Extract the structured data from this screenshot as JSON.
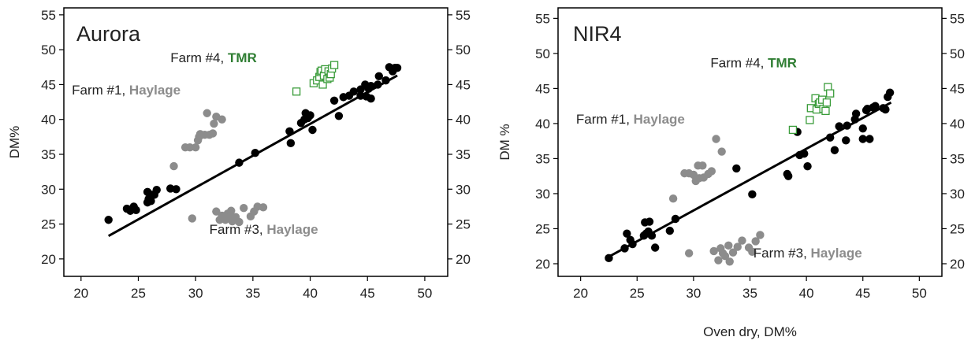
{
  "chart_data": [
    {
      "type": "scatter",
      "title": "Aurora",
      "xlabel": "",
      "ylabel": "DM%",
      "xlim": [
        18.5,
        52
      ],
      "ylim": [
        17.5,
        56
      ],
      "xticks": [
        20,
        25,
        30,
        35,
        40,
        45,
        50
      ],
      "yticks": [
        20,
        25,
        30,
        35,
        40,
        45,
        50,
        55
      ],
      "right_axis_ticks": true,
      "grid": false,
      "colors": {
        "black": "#000000",
        "gray": "#8c8c8c",
        "green": "#3a9c3a",
        "tmr_label": "#2e7d32"
      },
      "annotations": [
        {
          "farm": "Farm #4,",
          "type": "TMR",
          "color": "green",
          "x": 27.8,
          "y": 48.2
        },
        {
          "farm": "Farm #1,",
          "type": "Haylage",
          "color": "gray",
          "x": 19.2,
          "y": 43.6
        },
        {
          "farm": "Farm #3,",
          "type": "Haylage",
          "color": "gray",
          "x": 31.2,
          "y": 23.6
        }
      ],
      "series": [
        {
          "marker": "filled-circle",
          "color": "black",
          "points": [
            [
              22.4,
              25.6
            ],
            [
              24.0,
              27.2
            ],
            [
              24.3,
              26.9
            ],
            [
              24.6,
              27.5
            ],
            [
              24.8,
              27.0
            ],
            [
              25.8,
              28.1
            ],
            [
              25.8,
              29.6
            ],
            [
              25.9,
              28.6
            ],
            [
              26.1,
              28.3
            ],
            [
              26.2,
              29.2
            ],
            [
              26.4,
              29.2
            ],
            [
              26.6,
              29.9
            ],
            [
              27.8,
              30.1
            ],
            [
              28.3,
              30.0
            ],
            [
              33.8,
              33.8
            ],
            [
              35.2,
              35.2
            ],
            [
              38.2,
              38.3
            ],
            [
              38.3,
              36.6
            ],
            [
              39.2,
              39.5
            ],
            [
              39.5,
              40.0
            ],
            [
              39.6,
              40.9
            ],
            [
              39.8,
              40.2
            ],
            [
              40.0,
              40.6
            ],
            [
              40.2,
              38.5
            ],
            [
              42.1,
              42.7
            ],
            [
              42.5,
              40.5
            ],
            [
              42.9,
              43.2
            ],
            [
              43.4,
              43.4
            ],
            [
              43.8,
              44.0
            ],
            [
              44.4,
              43.4
            ],
            [
              44.4,
              44.3
            ],
            [
              44.8,
              45.0
            ],
            [
              44.9,
              43.3
            ],
            [
              45.1,
              44.4
            ],
            [
              45.3,
              43.0
            ],
            [
              45.3,
              44.8
            ],
            [
              45.9,
              45.0
            ],
            [
              46.0,
              46.2
            ],
            [
              46.6,
              45.6
            ],
            [
              46.9,
              47.5
            ],
            [
              47.2,
              46.9
            ],
            [
              47.4,
              47.4
            ],
            [
              47.6,
              47.4
            ]
          ]
        },
        {
          "marker": "filled-circle",
          "color": "gray",
          "points": [
            [
              28.1,
              33.3
            ],
            [
              29.1,
              36.0
            ],
            [
              29.5,
              36.0
            ],
            [
              30.0,
              36.0
            ],
            [
              30.2,
              37.0
            ],
            [
              30.3,
              37.5
            ],
            [
              30.4,
              37.9
            ],
            [
              30.8,
              37.8
            ],
            [
              31.0,
              40.9
            ],
            [
              31.2,
              37.8
            ],
            [
              31.5,
              38.0
            ],
            [
              31.6,
              39.4
            ],
            [
              31.8,
              40.4
            ],
            [
              32.3,
              40.0
            ],
            [
              29.7,
              25.8
            ],
            [
              31.8,
              26.8
            ],
            [
              32.1,
              25.6
            ],
            [
              32.3,
              26.2
            ],
            [
              32.6,
              25.6
            ],
            [
              32.8,
              26.5
            ],
            [
              33.0,
              26.0
            ],
            [
              33.1,
              26.9
            ],
            [
              33.2,
              25.4
            ],
            [
              33.5,
              26.0
            ],
            [
              33.8,
              25.3
            ],
            [
              34.2,
              27.3
            ],
            [
              34.8,
              26.1
            ],
            [
              35.1,
              26.8
            ],
            [
              35.4,
              27.5
            ],
            [
              35.9,
              27.4
            ]
          ]
        },
        {
          "marker": "open-square",
          "color": "green",
          "points": [
            [
              38.8,
              44.0
            ],
            [
              40.3,
              45.2
            ],
            [
              40.6,
              45.6
            ],
            [
              40.8,
              46.1
            ],
            [
              40.9,
              46.8
            ],
            [
              41.0,
              47.0
            ],
            [
              41.1,
              45.0
            ],
            [
              41.2,
              46.3
            ],
            [
              41.3,
              47.2
            ],
            [
              41.5,
              45.8
            ],
            [
              41.6,
              46.9
            ],
            [
              41.7,
              46.0
            ],
            [
              41.8,
              46.5
            ],
            [
              41.9,
              47.3
            ],
            [
              42.1,
              47.8
            ]
          ]
        }
      ],
      "fit_line": {
        "x": [
          22.4,
          47.6
        ],
        "y": [
          23.3,
          46.3
        ]
      }
    },
    {
      "type": "scatter",
      "title": "NIR4",
      "xlabel": "Oven dry, DM%",
      "ylabel": "DM %",
      "xlim": [
        18.0,
        52
      ],
      "ylim": [
        18.2,
        56.5
      ],
      "xticks": [
        20,
        25,
        30,
        35,
        40,
        45,
        50
      ],
      "yticks": [
        20,
        25,
        30,
        35,
        40,
        45,
        50,
        55
      ],
      "right_axis_ticks": true,
      "grid": false,
      "colors": {
        "black": "#000000",
        "gray": "#8c8c8c",
        "green": "#3a9c3a",
        "tmr_label": "#2e7d32"
      },
      "annotations": [
        {
          "farm": "Farm #4,",
          "type": "TMR",
          "color": "green",
          "x": 31.5,
          "y": 48.0
        },
        {
          "farm": "Farm #1,",
          "type": "Haylage",
          "color": "gray",
          "x": 19.6,
          "y": 40.0
        },
        {
          "farm": "Farm #3,",
          "type": "Haylage",
          "color": "gray",
          "x": 35.3,
          "y": 20.9
        }
      ],
      "series": [
        {
          "marker": "filled-circle",
          "color": "black",
          "points": [
            [
              22.5,
              20.8
            ],
            [
              23.9,
              22.2
            ],
            [
              24.1,
              24.3
            ],
            [
              24.4,
              23.4
            ],
            [
              24.6,
              22.8
            ],
            [
              25.6,
              24.0
            ],
            [
              25.7,
              25.9
            ],
            [
              25.8,
              24.3
            ],
            [
              26.0,
              24.6
            ],
            [
              26.1,
              26.0
            ],
            [
              26.3,
              24.0
            ],
            [
              26.6,
              22.3
            ],
            [
              27.9,
              24.7
            ],
            [
              28.4,
              26.4
            ],
            [
              33.8,
              33.6
            ],
            [
              35.2,
              29.9
            ],
            [
              38.3,
              32.8
            ],
            [
              38.4,
              32.5
            ],
            [
              39.2,
              38.8
            ],
            [
              39.4,
              35.5
            ],
            [
              39.8,
              35.7
            ],
            [
              40.1,
              33.9
            ],
            [
              42.1,
              38.0
            ],
            [
              42.5,
              36.2
            ],
            [
              42.9,
              39.6
            ],
            [
              43.5,
              37.6
            ],
            [
              43.6,
              39.7
            ],
            [
              44.3,
              40.6
            ],
            [
              44.4,
              41.4
            ],
            [
              45.0,
              39.3
            ],
            [
              45.0,
              37.8
            ],
            [
              45.3,
              41.9
            ],
            [
              45.4,
              42.1
            ],
            [
              45.6,
              37.8
            ],
            [
              45.9,
              42.3
            ],
            [
              46.1,
              42.5
            ],
            [
              46.8,
              42.2
            ],
            [
              47.0,
              42.0
            ],
            [
              47.2,
              43.8
            ],
            [
              47.4,
              44.4
            ]
          ]
        },
        {
          "marker": "filled-circle",
          "color": "gray",
          "points": [
            [
              28.2,
              29.3
            ],
            [
              29.2,
              32.9
            ],
            [
              29.6,
              32.9
            ],
            [
              30.0,
              32.7
            ],
            [
              30.2,
              31.8
            ],
            [
              30.4,
              34.0
            ],
            [
              30.5,
              32.2
            ],
            [
              30.8,
              34.0
            ],
            [
              30.9,
              32.3
            ],
            [
              31.3,
              32.8
            ],
            [
              31.6,
              33.2
            ],
            [
              32.0,
              37.8
            ],
            [
              32.5,
              36.0
            ],
            [
              29.6,
              21.5
            ],
            [
              31.8,
              21.8
            ],
            [
              32.2,
              20.5
            ],
            [
              32.4,
              22.2
            ],
            [
              32.6,
              21.5
            ],
            [
              32.8,
              21.1
            ],
            [
              33.1,
              22.6
            ],
            [
              33.2,
              20.3
            ],
            [
              33.5,
              21.6
            ],
            [
              33.9,
              22.4
            ],
            [
              34.3,
              23.3
            ],
            [
              34.9,
              22.3
            ],
            [
              35.2,
              21.7
            ],
            [
              35.5,
              23.2
            ],
            [
              35.9,
              24.1
            ]
          ]
        },
        {
          "marker": "open-square",
          "color": "green",
          "points": [
            [
              38.8,
              39.1
            ],
            [
              40.3,
              40.5
            ],
            [
              40.4,
              42.2
            ],
            [
              40.8,
              43.6
            ],
            [
              40.9,
              42.0
            ],
            [
              41.1,
              42.8
            ],
            [
              41.2,
              43.0
            ],
            [
              41.4,
              43.4
            ],
            [
              41.5,
              42.1
            ],
            [
              41.7,
              41.8
            ],
            [
              41.8,
              43.0
            ],
            [
              41.9,
              45.2
            ],
            [
              42.1,
              44.3
            ]
          ]
        }
      ],
      "fit_line": {
        "x": [
          22.5,
          47.5
        ],
        "y": [
          21.0,
          43.0
        ]
      }
    }
  ]
}
